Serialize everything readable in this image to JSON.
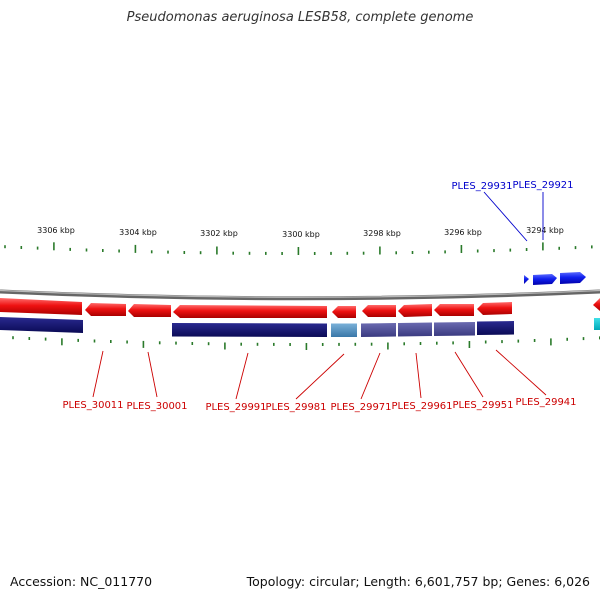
{
  "title": "Pseudomonas aeruginosa LESB58, complete genome",
  "footer": {
    "accession": "Accession: NC_011770",
    "info": "Topology: circular; Length: 6,601,757 bp; Genes: 6,026"
  },
  "colors": {
    "forward": "#0000ee",
    "reverse": "#dd0000",
    "cds": "#141470",
    "ruler_tick": "#2a7a2a",
    "backbone": "#888888"
  },
  "ruler_labels": [
    "3306 kbp",
    "3304 kbp",
    "3302 kbp",
    "3300 kbp",
    "3298 kbp",
    "3296 kbp",
    "3294 kbp"
  ],
  "labels_forward": [
    "PLES_29931",
    "PLES_29921"
  ],
  "labels_reverse": [
    "PLES_30011",
    "PLES_30001",
    "PLES_29991",
    "PLES_29981",
    "PLES_29971",
    "PLES_29961",
    "PLES_29951",
    "PLES_29941"
  ]
}
